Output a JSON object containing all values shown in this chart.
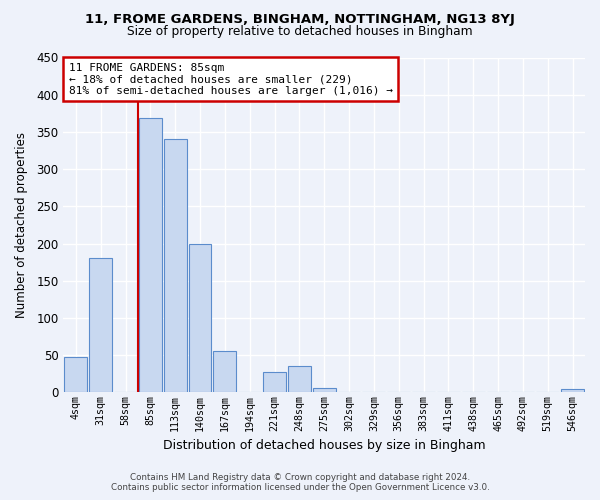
{
  "title1": "11, FROME GARDENS, BINGHAM, NOTTINGHAM, NG13 8YJ",
  "title2": "Size of property relative to detached houses in Bingham",
  "xlabel": "Distribution of detached houses by size in Bingham",
  "ylabel": "Number of detached properties",
  "bar_labels": [
    "4sqm",
    "31sqm",
    "58sqm",
    "85sqm",
    "113sqm",
    "140sqm",
    "167sqm",
    "194sqm",
    "221sqm",
    "248sqm",
    "275sqm",
    "302sqm",
    "329sqm",
    "356sqm",
    "383sqm",
    "411sqm",
    "438sqm",
    "465sqm",
    "492sqm",
    "519sqm",
    "546sqm"
  ],
  "bar_values": [
    47,
    181,
    0,
    369,
    340,
    200,
    55,
    0,
    27,
    35,
    6,
    0,
    0,
    0,
    0,
    0,
    0,
    0,
    0,
    0,
    4
  ],
  "bar_color": "#c8d8f0",
  "bar_edge_color": "#5b8ccc",
  "vline_color": "#cc0000",
  "annotation_line1": "11 FROME GARDENS: 85sqm",
  "annotation_line2": "← 18% of detached houses are smaller (229)",
  "annotation_line3": "81% of semi-detached houses are larger (1,016) →",
  "annotation_box_color": "#ffffff",
  "annotation_box_edge": "#cc0000",
  "ylim": [
    0,
    450
  ],
  "yticks": [
    0,
    50,
    100,
    150,
    200,
    250,
    300,
    350,
    400,
    450
  ],
  "footer1": "Contains HM Land Registry data © Crown copyright and database right 2024.",
  "footer2": "Contains public sector information licensed under the Open Government Licence v3.0.",
  "bg_color": "#eef2fa"
}
